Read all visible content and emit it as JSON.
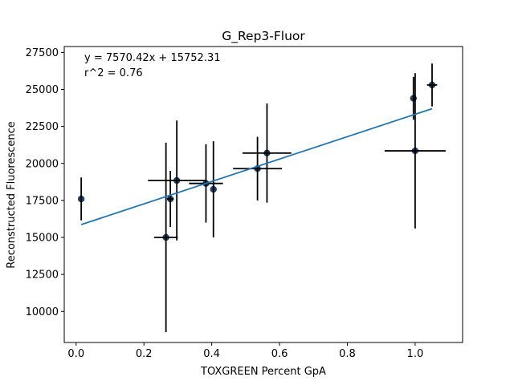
{
  "chart_data": {
    "type": "scatter",
    "title": "G_Rep3-Fluor",
    "xlabel": "TOXGREEN Percent GpA",
    "ylabel": "Reconstructed Fluorescence",
    "xlim": [
      -0.035,
      1.14
    ],
    "ylim": [
      7900,
      27900
    ],
    "xticks": [
      0.0,
      0.2,
      0.4,
      0.6,
      0.8,
      1.0
    ],
    "xtick_labels": [
      "0.0",
      "0.2",
      "0.4",
      "0.6",
      "0.8",
      "1.0"
    ],
    "yticks": [
      10000,
      12500,
      15000,
      17500,
      20000,
      22500,
      25000,
      27500
    ],
    "ytick_labels": [
      "10000",
      "12500",
      "15000",
      "17500",
      "20000",
      "22500",
      "25000",
      "27500"
    ],
    "grid": false,
    "annotations": [
      "y = 7570.42x + 15752.31",
      "r^2 = 0.76"
    ],
    "fit_line": {
      "slope": 7570.42,
      "intercept": 15752.31,
      "x_range": [
        0.015,
        1.05
      ]
    },
    "points": [
      {
        "x": 0.015,
        "y": 17600,
        "xerr": 0.0,
        "yerr": 1450
      },
      {
        "x": 0.265,
        "y": 15000,
        "xerr": 0.035,
        "yerr": 6400
      },
      {
        "x": 0.278,
        "y": 17600,
        "xerr": 0.01,
        "yerr": 1900
      },
      {
        "x": 0.297,
        "y": 18850,
        "xerr": 0.085,
        "yerr": 4050
      },
      {
        "x": 0.383,
        "y": 18650,
        "xerr": 0.05,
        "yerr": 2650
      },
      {
        "x": 0.405,
        "y": 18250,
        "xerr": 0.0,
        "yerr": 3250
      },
      {
        "x": 0.535,
        "y": 19650,
        "xerr": 0.072,
        "yerr": 2150
      },
      {
        "x": 0.563,
        "y": 20700,
        "xerr": 0.072,
        "yerr": 3350
      },
      {
        "x": 0.995,
        "y": 24400,
        "xerr": 0.0,
        "yerr": 1450
      },
      {
        "x": 1.0,
        "y": 20850,
        "xerr": 0.09,
        "yerr": 5250
      },
      {
        "x": 1.05,
        "y": 25300,
        "xerr": 0.015,
        "yerr": 1450
      }
    ],
    "colors": {
      "point": "#1f3f5f",
      "fit": "#1f77b4",
      "errorbar": "#000000"
    }
  }
}
